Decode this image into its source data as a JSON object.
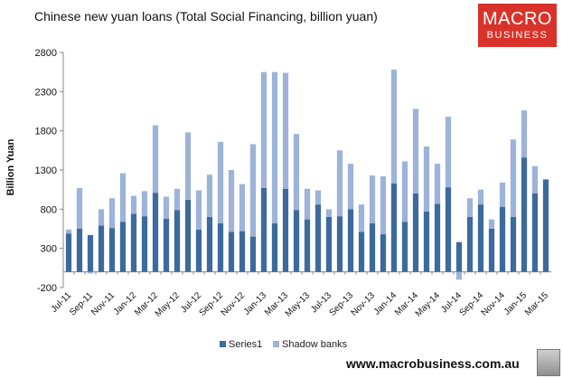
{
  "title": "Chinese new yuan loans (Total Social Financing, billion yuan)",
  "logo": {
    "line1": "MACRO",
    "line2": "BUSINESS",
    "color": "#d8332a"
  },
  "website": "www.macrobusiness.com.au",
  "chart_data": {
    "type": "bar",
    "stacked": true,
    "title": "Chinese new yuan loans (Total Social Financing, billion yuan)",
    "ylabel": "Billion Yuan",
    "xlabel": "",
    "ylim": [
      -200,
      2800
    ],
    "yticks": [
      -200,
      300,
      800,
      1300,
      1800,
      2300,
      2800
    ],
    "grid": false,
    "legend_position": "bottom",
    "categories": [
      "Jul-11",
      "Aug-11",
      "Sep-11",
      "Oct-11",
      "Nov-11",
      "Dec-11",
      "Jan-12",
      "Feb-12",
      "Mar-12",
      "Apr-12",
      "May-12",
      "Jun-12",
      "Jul-12",
      "Aug-12",
      "Sep-12",
      "Oct-12",
      "Nov-12",
      "Dec-12",
      "Jan-13",
      "Feb-13",
      "Mar-13",
      "Apr-13",
      "May-13",
      "Jun-13",
      "Jul-13",
      "Aug-13",
      "Sep-13",
      "Oct-13",
      "Nov-13",
      "Dec-13",
      "Jan-14",
      "Feb-14",
      "Mar-14",
      "Apr-14",
      "May-14",
      "Jun-14",
      "Jul-14",
      "Aug-14",
      "Sep-14",
      "Oct-14",
      "Nov-14",
      "Dec-14",
      "Jan-15",
      "Feb-15",
      "Mar-15"
    ],
    "tick_labels": [
      "Jul-11",
      "Sep-11",
      "Nov-11",
      "Jan-12",
      "Mar-12",
      "May-12",
      "Jul-12",
      "Sep-12",
      "Nov-12",
      "Jan-13",
      "Mar-13",
      "May-13",
      "Jul-13",
      "Sep-13",
      "Nov-13",
      "Jan-14",
      "Mar-14",
      "May-14",
      "Jul-14",
      "Sep-14",
      "Nov-14",
      "Jan-15",
      "Mar-15"
    ],
    "series": [
      {
        "name": "Series1",
        "color": "#3c6a9e",
        "values": [
          490,
          550,
          470,
          590,
          560,
          640,
          740,
          710,
          1010,
          680,
          790,
          920,
          540,
          700,
          620,
          510,
          520,
          450,
          1070,
          620,
          1060,
          790,
          670,
          860,
          700,
          710,
          800,
          510,
          620,
          480,
          1130,
          640,
          1000,
          770,
          870,
          1080,
          380,
          700,
          860,
          550,
          830,
          700,
          1460,
          1000,
          1180
        ]
      },
      {
        "name": "Shadow banks",
        "color": "#9db3d9",
        "values": [
          50,
          520,
          -20,
          210,
          380,
          620,
          230,
          320,
          860,
          280,
          270,
          860,
          500,
          540,
          1040,
          790,
          600,
          1180,
          1480,
          1930,
          1480,
          970,
          390,
          180,
          100,
          840,
          580,
          350,
          610,
          740,
          1450,
          770,
          1080,
          830,
          510,
          900,
          -100,
          240,
          190,
          120,
          310,
          990,
          600,
          350,
          0
        ]
      }
    ]
  }
}
